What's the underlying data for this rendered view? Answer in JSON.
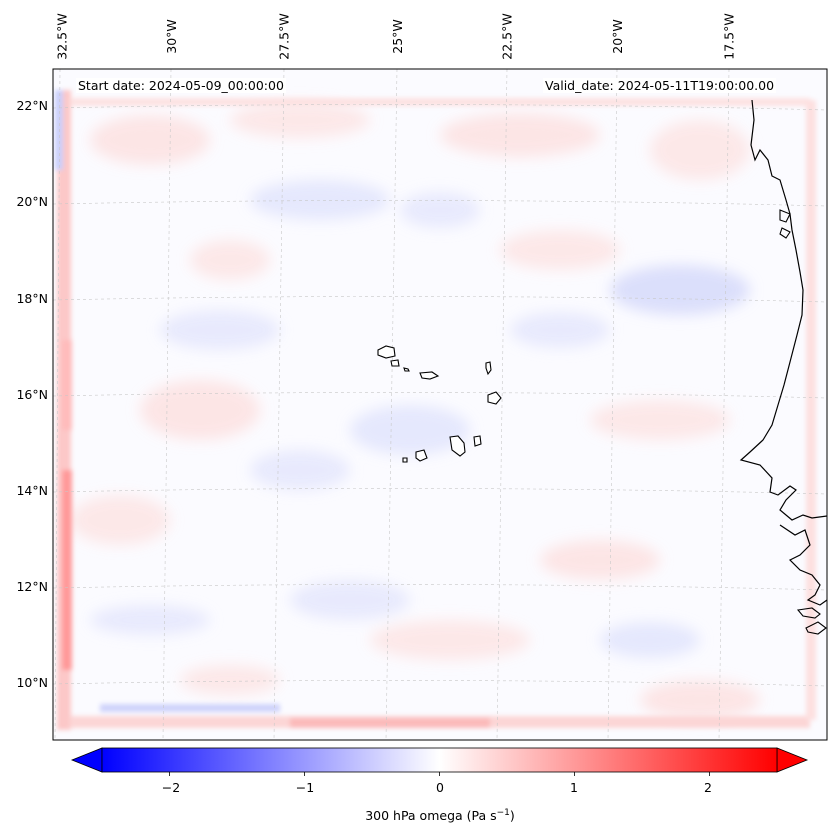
{
  "map": {
    "title_start": "Start date: 2024-05-09_00:00:00",
    "title_valid": "Valid_date: 2024-05-11T19:00:00.00",
    "longitude_labels": [
      "32.5°W",
      "30°W",
      "27.5°W",
      "25°W",
      "22.5°W",
      "20°W",
      "17.5°W"
    ],
    "latitude_labels": [
      "22°N",
      "20°N",
      "18°N",
      "16°N",
      "14°N",
      "12°N",
      "10°N"
    ],
    "variable": "300 hPa omega",
    "units": "Pa s⁻¹"
  },
  "colorbar": {
    "label_text": "300 hPa omega (Pa s",
    "label_sup": "−1",
    "label_close": ")",
    "ticks": [
      "−2",
      "−1",
      "0",
      "1",
      "2"
    ],
    "tick_values": [
      -2,
      -1,
      0,
      1,
      2
    ],
    "range": [
      -2.5,
      2.5
    ],
    "colormap": "bwr",
    "extend": "both"
  },
  "colors": {
    "negative": "#0000ff",
    "neutral": "#ffffff",
    "positive": "#ff0000",
    "coast": "#000000",
    "grid": "#b0b0b0"
  }
}
